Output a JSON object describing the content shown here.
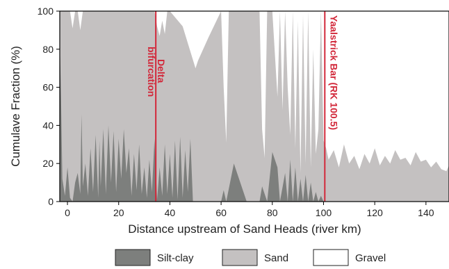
{
  "chart_data": {
    "type": "area",
    "title": "",
    "xlabel": "Distance upstream of Sand Heads (river km)",
    "ylabel": "Cumulave Fraction (%)",
    "xlim": [
      -3,
      149
    ],
    "ylim": [
      0,
      100
    ],
    "xticks": [
      0,
      20,
      40,
      60,
      80,
      100,
      120,
      140
    ],
    "yticks": [
      0,
      20,
      40,
      60,
      80,
      100
    ],
    "colors": {
      "silt_clay": "#7d7f7d",
      "sand": "#c4c1c1",
      "gravel": "#ffffff",
      "marker": "#d2283a"
    },
    "series": [
      {
        "name": "Silt-clay",
        "x": [
          -3,
          -2.5,
          -2,
          -1,
          0,
          1,
          2,
          3,
          4,
          5,
          5.5,
          6,
          7,
          8,
          9,
          10,
          11,
          12,
          12.5,
          13,
          14,
          15,
          16,
          17,
          18,
          19,
          20,
          21,
          22,
          23,
          24,
          25,
          26,
          27,
          28,
          29,
          30,
          31,
          32,
          33,
          34,
          35,
          36,
          37,
          38,
          39,
          40,
          41,
          42,
          43,
          44,
          45,
          46,
          47,
          48,
          49,
          60,
          61,
          62,
          65,
          70,
          75,
          76,
          78,
          80,
          82,
          83,
          85,
          86,
          87,
          88,
          89,
          90,
          91,
          92,
          93,
          94,
          95,
          96,
          97,
          98,
          99,
          100,
          149
        ],
        "values": [
          85,
          55,
          12,
          3,
          18,
          2,
          0,
          10,
          15,
          4,
          46,
          8,
          20,
          3,
          28,
          5,
          35,
          2,
          32,
          8,
          38,
          4,
          40,
          10,
          37,
          5,
          33,
          12,
          38,
          15,
          28,
          3,
          25,
          6,
          30,
          4,
          18,
          2,
          22,
          5,
          33,
          1,
          18,
          3,
          30,
          4,
          25,
          2,
          32,
          1,
          34,
          2,
          27,
          5,
          33,
          0,
          0,
          6,
          0,
          20,
          0,
          0,
          8,
          0,
          26,
          18,
          0,
          15,
          0,
          22,
          0,
          18,
          0,
          12,
          0,
          14,
          0,
          10,
          0,
          5,
          0,
          3,
          0,
          0
        ]
      },
      {
        "name": "Sand",
        "x": [
          -3,
          1,
          2,
          3,
          4,
          5,
          6,
          7,
          8,
          9,
          10,
          15,
          20,
          25,
          30,
          33,
          34,
          35,
          36,
          37,
          38,
          39,
          40,
          45,
          50,
          51,
          55,
          60,
          61,
          62,
          63,
          64,
          65,
          66,
          70,
          75,
          76,
          77,
          78,
          80,
          82,
          83,
          84,
          85,
          86,
          87,
          88,
          89,
          90,
          91,
          92,
          93,
          94,
          95,
          96,
          97,
          98,
          99,
          100,
          101,
          102,
          104,
          106,
          108,
          110,
          112,
          114,
          116,
          118,
          120,
          122,
          124,
          126,
          128,
          130,
          132,
          134,
          136,
          138,
          140,
          142,
          144,
          146,
          148,
          149
        ],
        "values": [
          100,
          100,
          91,
          100,
          100,
          90,
          100,
          100,
          100,
          100,
          100,
          100,
          100,
          100,
          100,
          100,
          100,
          92,
          87,
          95,
          88,
          100,
          100,
          92,
          70,
          74,
          86,
          100,
          60,
          31,
          100,
          100,
          100,
          100,
          100,
          100,
          38,
          23,
          100,
          100,
          55,
          100,
          48,
          100,
          60,
          35,
          100,
          28,
          95,
          15,
          98,
          20,
          100,
          18,
          80,
          25,
          38,
          100,
          32,
          28,
          22,
          27,
          18,
          30,
          20,
          24,
          17,
          25,
          20,
          28,
          19,
          24,
          20,
          27,
          22,
          23,
          19,
          26,
          21,
          22,
          18,
          21,
          17,
          16,
          19
        ]
      },
      {
        "name": "Gravel",
        "x": [
          -3,
          149
        ],
        "values": [
          100,
          100
        ]
      }
    ],
    "annotations": [
      {
        "x": 34.5,
        "line1": "Delta",
        "line2": "bifurcation"
      },
      {
        "x": 100.5,
        "line1": "Yaalstrick Bar (RK 100.5)",
        "line2": ""
      }
    ],
    "legend_position": "bottom"
  }
}
